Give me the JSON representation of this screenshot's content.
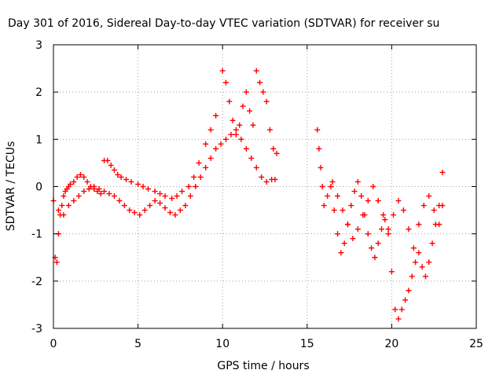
{
  "chart_data": {
    "type": "scatter",
    "title": "Day 301 of 2016, Sidereal Day-to-day VTEC variation (SDTVAR) for receiver su",
    "xlabel": "GPS time / hours",
    "ylabel": "SDTVAR / TECUs",
    "xlim": [
      0,
      25
    ],
    "ylim": [
      -3,
      3
    ],
    "x_ticks": [
      "0",
      "5",
      "10",
      "15",
      "20",
      "25"
    ],
    "y_ticks": [
      "-3",
      "-2",
      "-1",
      "0",
      "1",
      "2",
      "3"
    ],
    "grid": true,
    "legend": "none",
    "marker": "+",
    "colors": {
      "series": "#ff0000",
      "grid": "#a0a0a0",
      "axis": "#000000"
    },
    "series": [
      {
        "x": [
          0.0,
          0.1,
          0.2,
          0.3,
          0.4,
          0.5,
          0.6,
          0.7,
          0.8,
          0.9,
          1.0,
          1.2,
          1.4,
          1.6,
          1.8,
          2.0,
          2.2,
          2.4,
          2.6,
          2.8,
          3.0,
          3.2,
          3.4,
          3.6,
          3.8,
          4.0,
          4.3,
          4.6,
          5.0,
          5.3,
          5.6,
          6.0,
          6.3,
          6.6,
          7.0,
          7.3,
          7.6,
          8.0,
          8.3,
          8.6,
          9.0,
          9.3,
          9.6,
          10.0,
          10.2,
          10.4,
          10.6,
          10.8,
          11.0,
          11.2,
          11.4,
          11.6,
          11.8,
          12.0,
          12.2,
          12.4,
          12.6,
          12.8,
          13.0,
          13.2
        ],
        "y": [
          -0.3,
          -1.5,
          -1.6,
          -1.0,
          -0.6,
          -0.4,
          -0.2,
          -0.1,
          -0.05,
          0.0,
          0.05,
          0.1,
          0.2,
          0.25,
          0.2,
          0.1,
          0.0,
          -0.05,
          -0.1,
          -0.15,
          0.55,
          0.55,
          0.45,
          0.35,
          0.25,
          0.2,
          0.15,
          0.1,
          0.05,
          0.0,
          -0.05,
          -0.1,
          -0.15,
          -0.2,
          -0.25,
          -0.2,
          -0.1,
          0.0,
          0.2,
          0.5,
          0.9,
          1.2,
          1.5,
          2.45,
          2.2,
          1.8,
          1.4,
          1.1,
          1.3,
          1.7,
          2.0,
          1.6,
          1.3,
          2.45,
          2.2,
          2.0,
          1.8,
          1.2,
          0.8,
          0.7
        ]
      },
      {
        "x": [
          0.3,
          0.6,
          0.9,
          1.2,
          1.5,
          1.8,
          2.1,
          2.4,
          2.7,
          3.0,
          3.3,
          3.6,
          3.9,
          4.2,
          4.5,
          4.8,
          5.1,
          5.4,
          5.7,
          6.0,
          6.3,
          6.6,
          6.9,
          7.2,
          7.5,
          7.8,
          8.1,
          8.4,
          8.7,
          9.0,
          9.3,
          9.6,
          9.9,
          10.2,
          10.5,
          10.8,
          11.1,
          11.4,
          11.7,
          12.0,
          12.3,
          12.6,
          12.9,
          13.1
        ],
        "y": [
          -0.5,
          -0.6,
          -0.4,
          -0.3,
          -0.2,
          -0.1,
          -0.05,
          0.0,
          -0.05,
          -0.1,
          -0.15,
          -0.2,
          -0.3,
          -0.4,
          -0.5,
          -0.55,
          -0.6,
          -0.5,
          -0.4,
          -0.3,
          -0.35,
          -0.45,
          -0.55,
          -0.6,
          -0.5,
          -0.4,
          -0.2,
          0.0,
          0.2,
          0.4,
          0.6,
          0.8,
          0.9,
          1.0,
          1.1,
          1.2,
          1.0,
          0.8,
          0.6,
          0.4,
          0.2,
          0.1,
          0.15,
          0.15
        ]
      },
      {
        "x": [
          15.6,
          15.7,
          15.8,
          15.9,
          16.0,
          16.2,
          16.4,
          16.6,
          16.8,
          17.0,
          17.2,
          17.4,
          17.6,
          17.8,
          18.0,
          18.2,
          18.4,
          18.6,
          18.8,
          19.0,
          19.2,
          19.4,
          19.6,
          19.8,
          20.0,
          20.2,
          20.4,
          20.6,
          20.8,
          21.0,
          21.2,
          21.4,
          21.6,
          21.8,
          22.0,
          22.2,
          22.4,
          22.6,
          22.8,
          23.0
        ],
        "y": [
          1.2,
          0.8,
          0.4,
          0.0,
          -0.4,
          -0.2,
          0.0,
          -0.5,
          -1.0,
          -1.4,
          -1.2,
          -0.8,
          -0.4,
          -0.1,
          0.1,
          -0.2,
          -0.6,
          -1.0,
          -1.3,
          -1.5,
          -1.2,
          -0.9,
          -0.7,
          -1.0,
          -1.8,
          -2.6,
          -2.8,
          -2.6,
          -2.4,
          -2.2,
          -1.9,
          -1.6,
          -1.4,
          -1.7,
          -1.9,
          -1.6,
          -1.2,
          -0.8,
          -0.4,
          0.3
        ]
      },
      {
        "x": [
          16.5,
          16.8,
          17.1,
          17.4,
          17.7,
          18.0,
          18.3,
          18.6,
          18.9,
          19.2,
          19.5,
          19.8,
          20.1,
          20.4,
          20.7,
          21.0,
          21.3,
          21.6,
          21.9,
          22.2,
          22.5,
          22.8,
          23.0
        ],
        "y": [
          0.1,
          -0.2,
          -0.5,
          -0.8,
          -1.1,
          -0.9,
          -0.6,
          -0.3,
          0.0,
          -0.3,
          -0.6,
          -0.9,
          -0.6,
          -0.3,
          -0.5,
          -0.9,
          -1.3,
          -0.8,
          -0.4,
          -0.2,
          -0.5,
          -0.8,
          -0.4
        ]
      }
    ]
  }
}
